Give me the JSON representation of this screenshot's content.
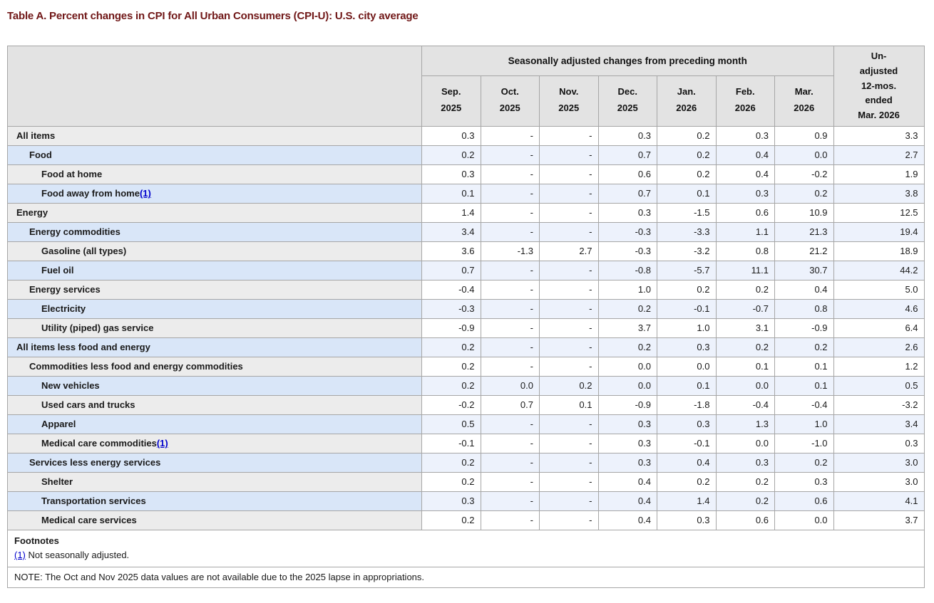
{
  "title": "Table A. Percent changes in CPI for All Urban Consumers (CPI-U): U.S. city average",
  "colors": {
    "title_text": "#701717",
    "header_bg": "#e3e3e3",
    "gray_row_label_bg": "#ececec",
    "gray_row_data_bg": "#ffffff",
    "blue_row_label_bg": "#d9e6f8",
    "blue_row_data_bg": "#edf2fc",
    "border": "#a6a6a6",
    "link": "#0000cc"
  },
  "chart_data": {
    "type": "table",
    "title": "Table A. Percent changes in CPI for All Urban Consumers (CPI-U): U.S. city average",
    "column_group_header": "Seasonally adjusted changes from preceding month",
    "month_columns": [
      "Sep. 2025",
      "Oct. 2025",
      "Nov. 2025",
      "Dec. 2025",
      "Jan. 2026",
      "Feb. 2026",
      "Mar. 2026"
    ],
    "last_column": "Un-adjusted 12-mos. ended Mar. 2026",
    "last_column_display": "Un-\nadjusted\n12-mos.\nended\nMar. 2026",
    "missing_value_symbol": "-",
    "rows": [
      {
        "label": "All items",
        "indent": 0,
        "values": [
          "0.3",
          "-",
          "-",
          "0.3",
          "0.2",
          "0.3",
          "0.9",
          "3.3"
        ]
      },
      {
        "label": "Food",
        "indent": 1,
        "values": [
          "0.2",
          "-",
          "-",
          "0.7",
          "0.2",
          "0.4",
          "0.0",
          "2.7"
        ]
      },
      {
        "label": "Food at home",
        "indent": 2,
        "values": [
          "0.3",
          "-",
          "-",
          "0.6",
          "0.2",
          "0.4",
          "-0.2",
          "1.9"
        ]
      },
      {
        "label": "Food away from home",
        "footnote": "(1)",
        "indent": 2,
        "values": [
          "0.1",
          "-",
          "-",
          "0.7",
          "0.1",
          "0.3",
          "0.2",
          "3.8"
        ]
      },
      {
        "label": "Energy",
        "indent": 0,
        "values": [
          "1.4",
          "-",
          "-",
          "0.3",
          "-1.5",
          "0.6",
          "10.9",
          "12.5"
        ]
      },
      {
        "label": "Energy commodities",
        "indent": 1,
        "values": [
          "3.4",
          "-",
          "-",
          "-0.3",
          "-3.3",
          "1.1",
          "21.3",
          "19.4"
        ]
      },
      {
        "label": "Gasoline (all types)",
        "indent": 2,
        "values": [
          "3.6",
          "-1.3",
          "2.7",
          "-0.3",
          "-3.2",
          "0.8",
          "21.2",
          "18.9"
        ]
      },
      {
        "label": "Fuel oil",
        "indent": 2,
        "values": [
          "0.7",
          "-",
          "-",
          "-0.8",
          "-5.7",
          "11.1",
          "30.7",
          "44.2"
        ]
      },
      {
        "label": "Energy services",
        "indent": 1,
        "values": [
          "-0.4",
          "-",
          "-",
          "1.0",
          "0.2",
          "0.2",
          "0.4",
          "5.0"
        ]
      },
      {
        "label": "Electricity",
        "indent": 2,
        "values": [
          "-0.3",
          "-",
          "-",
          "0.2",
          "-0.1",
          "-0.7",
          "0.8",
          "4.6"
        ]
      },
      {
        "label": "Utility (piped) gas service",
        "indent": 2,
        "values": [
          "-0.9",
          "-",
          "-",
          "3.7",
          "1.0",
          "3.1",
          "-0.9",
          "6.4"
        ]
      },
      {
        "label": "All items less food and energy",
        "indent": 0,
        "values": [
          "0.2",
          "-",
          "-",
          "0.2",
          "0.3",
          "0.2",
          "0.2",
          "2.6"
        ]
      },
      {
        "label": "Commodities less food and energy commodities",
        "indent": 1,
        "values": [
          "0.2",
          "-",
          "-",
          "0.0",
          "0.0",
          "0.1",
          "0.1",
          "1.2"
        ]
      },
      {
        "label": "New vehicles",
        "indent": 2,
        "values": [
          "0.2",
          "0.0",
          "0.2",
          "0.0",
          "0.1",
          "0.0",
          "0.1",
          "0.5"
        ]
      },
      {
        "label": "Used cars and trucks",
        "indent": 2,
        "values": [
          "-0.2",
          "0.7",
          "0.1",
          "-0.9",
          "-1.8",
          "-0.4",
          "-0.4",
          "-3.2"
        ]
      },
      {
        "label": "Apparel",
        "indent": 2,
        "values": [
          "0.5",
          "-",
          "-",
          "0.3",
          "0.3",
          "1.3",
          "1.0",
          "3.4"
        ]
      },
      {
        "label": "Medical care commodities",
        "footnote": "(1)",
        "indent": 2,
        "values": [
          "-0.1",
          "-",
          "-",
          "0.3",
          "-0.1",
          "0.0",
          "-1.0",
          "0.3"
        ]
      },
      {
        "label": "Services less energy services",
        "indent": 1,
        "values": [
          "0.2",
          "-",
          "-",
          "0.3",
          "0.4",
          "0.3",
          "0.2",
          "3.0"
        ]
      },
      {
        "label": "Shelter",
        "indent": 2,
        "values": [
          "0.2",
          "-",
          "-",
          "0.4",
          "0.2",
          "0.2",
          "0.3",
          "3.0"
        ]
      },
      {
        "label": "Transportation services",
        "indent": 2,
        "values": [
          "0.3",
          "-",
          "-",
          "0.4",
          "1.4",
          "0.2",
          "0.6",
          "4.1"
        ]
      },
      {
        "label": "Medical care services",
        "indent": 2,
        "values": [
          "0.2",
          "-",
          "-",
          "0.4",
          "0.3",
          "0.6",
          "0.0",
          "3.7"
        ]
      }
    ]
  },
  "footnotes": {
    "heading": "Footnotes",
    "items": [
      {
        "marker": "(1)",
        "text": "Not seasonally adjusted."
      }
    ],
    "note": "NOTE: The Oct and Nov 2025 data values are not available due to the 2025 lapse in appropriations."
  }
}
